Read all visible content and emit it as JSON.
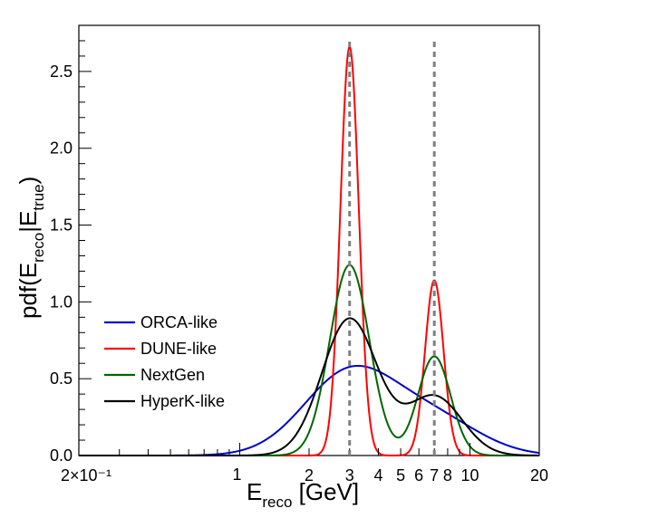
{
  "chart_data": {
    "type": "line",
    "title": "",
    "xlabel_main": "E",
    "xlabel_sub": "reco",
    "xlabel_unit": " [GeV]",
    "ylabel_pre": "pdf(E",
    "ylabel_sub1": "reco",
    "ylabel_mid": "|E",
    "ylabel_sub2": "true",
    "ylabel_post": ")",
    "xscale": "log",
    "xlim": [
      0.2,
      20
    ],
    "ylim": [
      0,
      2.8
    ],
    "yticks": [
      {
        "value": 0.0,
        "label": "0.0"
      },
      {
        "value": 0.5,
        "label": "0.5"
      },
      {
        "value": 1.0,
        "label": "1.0"
      },
      {
        "value": 1.5,
        "label": "1.5"
      },
      {
        "value": 2.0,
        "label": "2.0"
      },
      {
        "value": 2.5,
        "label": "2.5"
      }
    ],
    "xticks": [
      {
        "value": 0.2,
        "label": "2×10⁻¹"
      },
      {
        "value": 1,
        "label": "1"
      },
      {
        "value": 2,
        "label": "2"
      },
      {
        "value": 3,
        "label": "3"
      },
      {
        "value": 4,
        "label": "4"
      },
      {
        "value": 5,
        "label": "5"
      },
      {
        "value": 6,
        "label": "6"
      },
      {
        "value": 7,
        "label": "7"
      },
      {
        "value": 8,
        "label": "8"
      },
      {
        "value": 10,
        "label": "10"
      },
      {
        "value": 20,
        "label": "20"
      }
    ],
    "true_energies": [
      3,
      7
    ],
    "legend_position": "lower-left",
    "series": [
      {
        "name": "ORCA-like",
        "color": "#0000cc",
        "peaks": [
          {
            "mu": 3,
            "peak": 0.535,
            "sigma_log": 0.2
          },
          {
            "mu": 7,
            "peak": 0.228,
            "sigma_log": 0.2
          }
        ]
      },
      {
        "name": "DUNE-like",
        "color": "#ff0000",
        "peaks": [
          {
            "mu": 3,
            "peak": 2.66,
            "sigma_log": 0.04
          },
          {
            "mu": 7,
            "peak": 1.14,
            "sigma_log": 0.04
          }
        ]
      },
      {
        "name": "NextGen",
        "color": "#006600",
        "peaks": [
          {
            "mu": 3,
            "peak": 1.24,
            "sigma_log": 0.086
          },
          {
            "mu": 7,
            "peak": 0.645,
            "sigma_log": 0.071
          }
        ]
      },
      {
        "name": "HyperK-like",
        "color": "#000000",
        "peaks": [
          {
            "mu": 3,
            "peak": 0.89,
            "sigma_log": 0.12
          },
          {
            "mu": 7,
            "peak": 0.385,
            "sigma_log": 0.12
          }
        ]
      }
    ]
  }
}
